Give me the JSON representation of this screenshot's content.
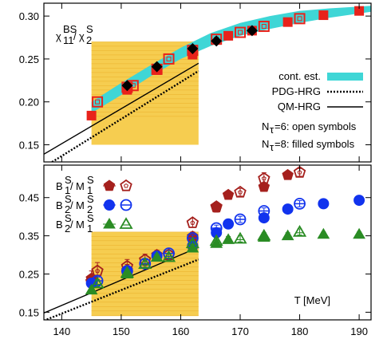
{
  "chart_data": [
    {
      "type": "scatter",
      "xlim": [
        137,
        192
      ],
      "ylim": [
        0.13,
        0.315
      ],
      "yticks": [
        "0.15",
        "0.20",
        "0.25",
        "0.30"
      ],
      "ylabel_main": "χ",
      "ylabel_num_sup": "BS",
      "ylabel_num_sub": "11",
      "ylabel_den_sup": "S",
      "ylabel_den_sub": "2",
      "legend": {
        "cont_label": "cont. est.",
        "pdg_label": "PDG-HRG",
        "qm_label": "QM-HRG",
        "nt6_prefix": "N",
        "nt6_sub": "τ",
        "nt6_suffix": "=6: open symbols",
        "nt8_prefix": "N",
        "nt8_sub": "τ",
        "nt8_suffix": "=8: filled symbols"
      },
      "colors": {
        "band": "#3fd6d6",
        "yellow": "#f5c431",
        "red": "#e8221b",
        "black": "#000000"
      },
      "crossover_band_x": [
        145,
        163
      ],
      "crossover_band_y": [
        0.15,
        0.27
      ],
      "continuum_band": [
        {
          "x": 145,
          "lo": 0.187,
          "hi": 0.2
        },
        {
          "x": 150,
          "lo": 0.208,
          "hi": 0.222
        },
        {
          "x": 155,
          "lo": 0.23,
          "hi": 0.243
        },
        {
          "x": 160,
          "lo": 0.25,
          "hi": 0.263
        },
        {
          "x": 165,
          "lo": 0.265,
          "hi": 0.28
        },
        {
          "x": 170,
          "lo": 0.277,
          "hi": 0.292
        },
        {
          "x": 175,
          "lo": 0.285,
          "hi": 0.3
        },
        {
          "x": 180,
          "lo": 0.292,
          "hi": 0.306
        },
        {
          "x": 185,
          "lo": 0.298,
          "hi": 0.309
        },
        {
          "x": 190,
          "lo": 0.303,
          "hi": 0.311
        },
        {
          "x": 192,
          "lo": 0.305,
          "hi": 0.312
        }
      ],
      "qm_hrg": [
        {
          "x": 137,
          "y": 0.139
        },
        {
          "x": 163,
          "y": 0.245
        }
      ],
      "pdg_hrg": [
        {
          "x": 137,
          "y": 0.124
        },
        {
          "x": 163,
          "y": 0.236
        }
      ],
      "nt6_open": [
        {
          "x": 146,
          "y": 0.2
        },
        {
          "x": 151,
          "y": 0.217
        },
        {
          "x": 152,
          "y": 0.219
        },
        {
          "x": 156,
          "y": 0.238
        },
        {
          "x": 158,
          "y": 0.25
        },
        {
          "x": 162,
          "y": 0.26
        },
        {
          "x": 166,
          "y": 0.273
        },
        {
          "x": 170,
          "y": 0.281
        },
        {
          "x": 174,
          "y": 0.288
        },
        {
          "x": 180,
          "y": 0.297
        }
      ],
      "nt8_filled": [
        {
          "x": 145,
          "y": 0.184
        },
        {
          "x": 151,
          "y": 0.214
        },
        {
          "x": 156,
          "y": 0.237
        },
        {
          "x": 162,
          "y": 0.255
        },
        {
          "x": 168,
          "y": 0.277
        },
        {
          "x": 172,
          "y": 0.283
        },
        {
          "x": 178,
          "y": 0.293
        },
        {
          "x": 184,
          "y": 0.301
        },
        {
          "x": 190,
          "y": 0.306
        }
      ],
      "diamonds": [
        {
          "x": 151,
          "y": 0.219
        },
        {
          "x": 156,
          "y": 0.241
        },
        {
          "x": 162,
          "y": 0.262
        },
        {
          "x": 166,
          "y": 0.271
        },
        {
          "x": 172,
          "y": 0.283
        }
      ]
    },
    {
      "type": "scatter",
      "xlim": [
        137,
        192
      ],
      "ylim": [
        0.13,
        0.535
      ],
      "yticks": [
        "0.15",
        "0.25",
        "0.35",
        "0.45"
      ],
      "xticks": [
        "140",
        "150",
        "160",
        "170",
        "180",
        "190"
      ],
      "xlabel": "T [MeV]",
      "legend": {
        "s1": {
          "base": "B",
          "base_sup": "S",
          "base_sub": "1",
          "den": "M",
          "den_sup": "S",
          "den_sub": "1"
        },
        "s2": {
          "base": "B",
          "base_sup": "S",
          "base_sub": "2",
          "den": "M",
          "den_sup": "S",
          "den_sub": "2"
        },
        "s3": {
          "base": "B",
          "base_sup": "S",
          "base_sub": "2",
          "den": "M",
          "den_sup": "S",
          "den_sub": "1"
        }
      },
      "colors": {
        "s1": "#a5201d",
        "s2": "#1133ee",
        "s3": "#2a8c24",
        "yellow": "#f5c431",
        "black": "#000000"
      },
      "crossover_band_x": [
        145,
        163
      ],
      "crossover_band_y": [
        0.14,
        0.36
      ],
      "qm_hrg": [
        {
          "x": 137,
          "y": 0.148
        },
        {
          "x": 163,
          "y": 0.32
        }
      ],
      "pdg_hrg": [
        {
          "x": 137,
          "y": 0.128
        },
        {
          "x": 163,
          "y": 0.288
        }
      ],
      "series": [
        {
          "name": "B1S/M1S",
          "open": [
            {
              "x": 145,
              "y": 0.23,
              "e": 0.015
            },
            {
              "x": 146,
              "y": 0.258,
              "e": 0.022
            },
            {
              "x": 151,
              "y": 0.27,
              "e": 0.018
            },
            {
              "x": 154,
              "y": 0.287,
              "e": 0.015
            },
            {
              "x": 158,
              "y": 0.3,
              "e": 0.012
            },
            {
              "x": 162,
              "y": 0.384,
              "e": 0.012
            },
            {
              "x": 166,
              "y": 0.426,
              "e": 0.012
            },
            {
              "x": 170,
              "y": 0.464,
              "e": 0.01
            },
            {
              "x": 174,
              "y": 0.5,
              "e": 0.015
            },
            {
              "x": 180,
              "y": 0.516,
              "e": 0.01
            }
          ],
          "filled": [
            {
              "x": 145,
              "y": 0.238,
              "e": 0.02
            },
            {
              "x": 151,
              "y": 0.26,
              "e": 0.015
            },
            {
              "x": 156,
              "y": 0.3,
              "e": 0.012
            },
            {
              "x": 162,
              "y": 0.348,
              "e": 0.012
            },
            {
              "x": 166,
              "y": 0.424,
              "e": 0.012
            },
            {
              "x": 168,
              "y": 0.457,
              "e": 0.01
            },
            {
              "x": 174,
              "y": 0.478,
              "e": 0.01
            },
            {
              "x": 178,
              "y": 0.509,
              "e": 0.01
            }
          ]
        },
        {
          "name": "B2S/M2S",
          "open": [
            {
              "x": 146,
              "y": 0.232,
              "e": 0.01
            },
            {
              "x": 151,
              "y": 0.258,
              "e": 0.01
            },
            {
              "x": 154,
              "y": 0.277,
              "e": 0.01
            },
            {
              "x": 158,
              "y": 0.304,
              "e": 0.008
            },
            {
              "x": 162,
              "y": 0.344,
              "e": 0.008
            },
            {
              "x": 166,
              "y": 0.37,
              "e": 0.008
            },
            {
              "x": 170,
              "y": 0.393,
              "e": 0.008
            },
            {
              "x": 174,
              "y": 0.415,
              "e": 0.008
            },
            {
              "x": 180,
              "y": 0.434,
              "e": 0.008
            }
          ],
          "filled": [
            {
              "x": 145,
              "y": 0.226,
              "e": 0.01
            },
            {
              "x": 151,
              "y": 0.255,
              "e": 0.008
            },
            {
              "x": 156,
              "y": 0.297,
              "e": 0.008
            },
            {
              "x": 162,
              "y": 0.324,
              "e": 0.008
            },
            {
              "x": 166,
              "y": 0.358,
              "e": 0.008
            },
            {
              "x": 168,
              "y": 0.381,
              "e": 0.008
            },
            {
              "x": 174,
              "y": 0.397,
              "e": 0.008
            },
            {
              "x": 178,
              "y": 0.42,
              "e": 0.008
            },
            {
              "x": 184,
              "y": 0.434,
              "e": 0.006
            },
            {
              "x": 190,
              "y": 0.443,
              "e": 0.006
            }
          ]
        },
        {
          "name": "B2S/M1S",
          "open": [
            {
              "x": 146,
              "y": 0.225,
              "e": 0.008
            },
            {
              "x": 151,
              "y": 0.253,
              "e": 0.008
            },
            {
              "x": 154,
              "y": 0.276,
              "e": 0.008
            },
            {
              "x": 158,
              "y": 0.294,
              "e": 0.008
            },
            {
              "x": 162,
              "y": 0.33,
              "e": 0.008
            },
            {
              "x": 166,
              "y": 0.336,
              "e": 0.008
            },
            {
              "x": 170,
              "y": 0.342,
              "e": 0.008
            },
            {
              "x": 174,
              "y": 0.35,
              "e": 0.008
            },
            {
              "x": 180,
              "y": 0.36,
              "e": 0.008
            }
          ],
          "filled": [
            {
              "x": 145,
              "y": 0.208,
              "e": 0.008
            },
            {
              "x": 151,
              "y": 0.25,
              "e": 0.008
            },
            {
              "x": 156,
              "y": 0.294,
              "e": 0.008
            },
            {
              "x": 162,
              "y": 0.318,
              "e": 0.008
            },
            {
              "x": 166,
              "y": 0.33,
              "e": 0.008
            },
            {
              "x": 168,
              "y": 0.34,
              "e": 0.008
            },
            {
              "x": 174,
              "y": 0.346,
              "e": 0.008
            },
            {
              "x": 178,
              "y": 0.35,
              "e": 0.008
            },
            {
              "x": 184,
              "y": 0.354,
              "e": 0.006
            },
            {
              "x": 190,
              "y": 0.354,
              "e": 0.006
            }
          ]
        }
      ]
    }
  ]
}
